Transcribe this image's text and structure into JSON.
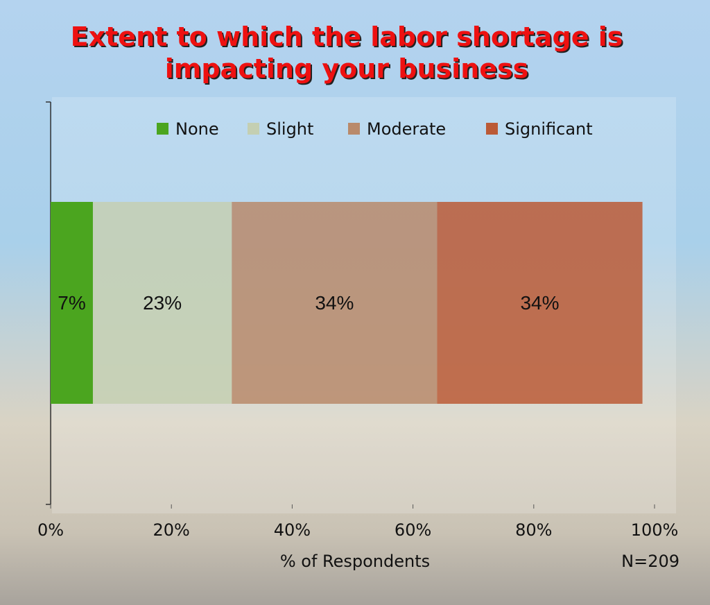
{
  "chart_data": {
    "type": "stacked_bar_horizontal",
    "title": "Extent to which the labor shortage is impacting your business",
    "xlabel": "% of Respondents",
    "annotation": "N=209",
    "legend": "top",
    "xlim": [
      0,
      100
    ],
    "xticks": [
      {
        "value": 0,
        "label": "0%"
      },
      {
        "value": 20,
        "label": "20%"
      },
      {
        "value": 40,
        "label": "40%"
      },
      {
        "value": 60,
        "label": "60%"
      },
      {
        "value": 80,
        "label": "80%"
      },
      {
        "value": 100,
        "label": "100%"
      }
    ],
    "series": [
      {
        "name": "None",
        "color": "#4ba51f",
        "values": [
          7
        ],
        "value_labels": [
          "7%"
        ]
      },
      {
        "name": "Slight",
        "color": "#c4cfb2",
        "values": [
          23
        ],
        "value_labels": [
          "23%"
        ]
      },
      {
        "name": "Moderate",
        "color": "#b98a6b",
        "values": [
          34
        ],
        "value_labels": [
          "34%"
        ]
      },
      {
        "name": "Significant",
        "color": "#bb5a36",
        "values": [
          34
        ],
        "value_labels": [
          "34%"
        ]
      }
    ]
  }
}
